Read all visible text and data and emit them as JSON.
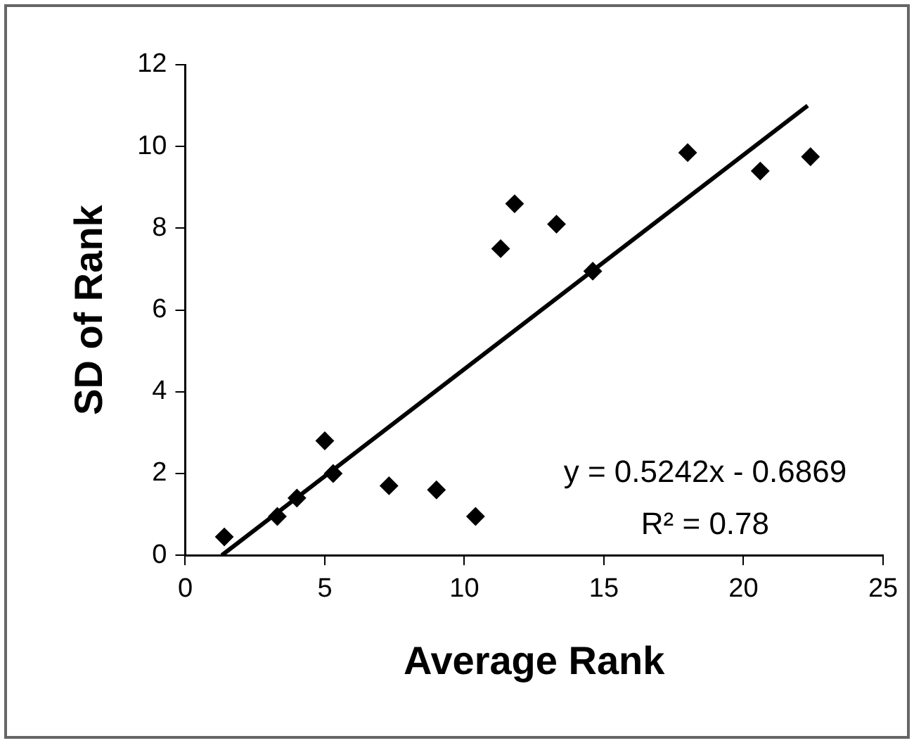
{
  "chart_data": {
    "type": "scatter",
    "xlabel": "Average Rank",
    "ylabel": "SD of Rank",
    "marker": "diamond",
    "legend": false,
    "grid": false,
    "xlim": [
      0,
      25
    ],
    "xticks": [
      0,
      5,
      10,
      15,
      20,
      25
    ],
    "ylim": [
      0,
      12
    ],
    "yticks": [
      0,
      2,
      4,
      6,
      8,
      10,
      12
    ],
    "series": [
      {
        "color": "#000000",
        "x": [
          1.4,
          3.3,
          4.0,
          5.0,
          5.3,
          7.3,
          9.0,
          10.4,
          11.3,
          11.8,
          13.3,
          14.6,
          18.0,
          20.6,
          22.4
        ],
        "values": [
          0.45,
          0.95,
          1.4,
          2.8,
          2.0,
          1.7,
          1.6,
          0.95,
          7.5,
          8.6,
          8.1,
          6.95,
          9.85,
          9.4,
          9.75
        ]
      },
      {
        "type": "line",
        "color": "#000000",
        "marker": "none",
        "x": [
          1.31,
          22.3
        ],
        "values": [
          0,
          11.0
        ]
      }
    ],
    "annotations": [
      "y = 0.5242x - 0.6869",
      "R² = 0.78"
    ]
  }
}
